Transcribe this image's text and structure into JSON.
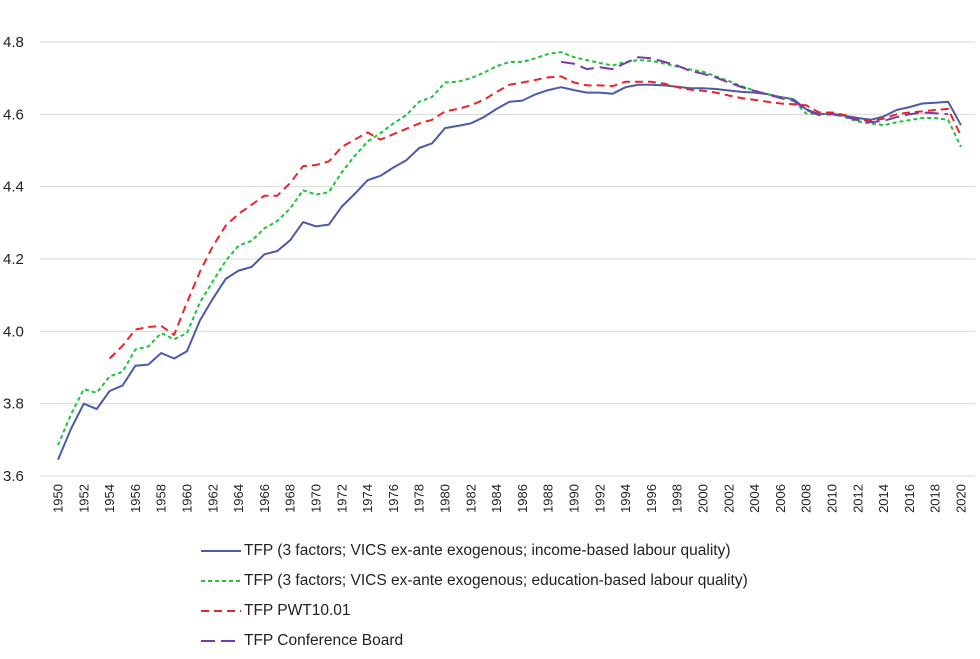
{
  "chart_data": {
    "type": "line",
    "title": "",
    "xlabel": "",
    "ylabel": "",
    "ylim": [
      3.6,
      4.8
    ],
    "yticks": [
      "3.6",
      "3.8",
      "4.0",
      "4.2",
      "4.4",
      "4.6",
      "4.8"
    ],
    "xlim": [
      1950,
      2020
    ],
    "xticks": [
      "1950",
      "1952",
      "1954",
      "1956",
      "1958",
      "1960",
      "1962",
      "1964",
      "1966",
      "1968",
      "1970",
      "1972",
      "1974",
      "1976",
      "1978",
      "1980",
      "1982",
      "1984",
      "1986",
      "1988",
      "1990",
      "1992",
      "1994",
      "1996",
      "1998",
      "2000",
      "2002",
      "2004",
      "2006",
      "2008",
      "2010",
      "2012",
      "2014",
      "2016",
      "2018",
      "2020"
    ],
    "grid": "horizontal",
    "legend_position": "bottom",
    "series": [
      {
        "name": "TFP (3 factors; VICS ex-ante exogenous; income-based labour quality)",
        "color": "#4a5ba8",
        "style": "solid",
        "x": [
          1950,
          1951,
          1952,
          1953,
          1954,
          1955,
          1956,
          1957,
          1958,
          1959,
          1960,
          1961,
          1962,
          1963,
          1964,
          1965,
          1966,
          1967,
          1968,
          1969,
          1970,
          1971,
          1972,
          1973,
          1974,
          1975,
          1976,
          1977,
          1978,
          1979,
          1980,
          1981,
          1982,
          1983,
          1984,
          1985,
          1986,
          1987,
          1988,
          1989,
          1990,
          1991,
          1992,
          1993,
          1994,
          1995,
          1996,
          1997,
          1998,
          1999,
          2000,
          2001,
          2002,
          2003,
          2004,
          2005,
          2006,
          2007,
          2008,
          2009,
          2010,
          2011,
          2012,
          2013,
          2014,
          2015,
          2016,
          2017,
          2018,
          2019,
          2020
        ],
        "values": [
          3.645,
          3.73,
          3.8,
          3.785,
          3.835,
          3.85,
          3.905,
          3.908,
          3.94,
          3.925,
          3.945,
          4.03,
          4.09,
          4.145,
          4.168,
          4.178,
          4.213,
          4.222,
          4.252,
          4.302,
          4.29,
          4.295,
          4.345,
          4.38,
          4.418,
          4.43,
          4.453,
          4.473,
          4.507,
          4.52,
          4.562,
          4.568,
          4.575,
          4.592,
          4.615,
          4.635,
          4.638,
          4.655,
          4.667,
          4.675,
          4.667,
          4.66,
          4.66,
          4.657,
          4.675,
          4.682,
          4.682,
          4.68,
          4.676,
          4.672,
          4.672,
          4.67,
          4.666,
          4.662,
          4.66,
          4.656,
          4.648,
          4.642,
          4.614,
          4.6,
          4.602,
          4.596,
          4.59,
          4.585,
          4.594,
          4.612,
          4.62,
          4.63,
          4.632,
          4.635,
          4.57
        ]
      },
      {
        "name": "TFP (3 factors; VICS ex-ante exogenous; education-based labour quality)",
        "color": "#21c23b",
        "style": "dotted",
        "x": [
          1950,
          1951,
          1952,
          1953,
          1954,
          1955,
          1956,
          1957,
          1958,
          1959,
          1960,
          1961,
          1962,
          1963,
          1964,
          1965,
          1966,
          1967,
          1968,
          1969,
          1970,
          1971,
          1972,
          1973,
          1974,
          1975,
          1976,
          1977,
          1978,
          1979,
          1980,
          1981,
          1982,
          1983,
          1984,
          1985,
          1986,
          1987,
          1988,
          1989,
          1990,
          1991,
          1992,
          1993,
          1994,
          1995,
          1996,
          1997,
          1998,
          1999,
          2000,
          2001,
          2002,
          2003,
          2004,
          2005,
          2006,
          2007,
          2008,
          2009,
          2010,
          2011,
          2012,
          2013,
          2014,
          2015,
          2016,
          2017,
          2018,
          2019,
          2020
        ],
        "values": [
          3.685,
          3.77,
          3.84,
          3.83,
          3.875,
          3.888,
          3.95,
          3.958,
          3.995,
          3.978,
          3.995,
          4.08,
          4.138,
          4.195,
          4.237,
          4.25,
          4.285,
          4.305,
          4.34,
          4.39,
          4.378,
          4.385,
          4.44,
          4.485,
          4.525,
          4.548,
          4.575,
          4.598,
          4.635,
          4.648,
          4.688,
          4.69,
          4.7,
          4.715,
          4.733,
          4.745,
          4.745,
          4.755,
          4.767,
          4.772,
          4.758,
          4.75,
          4.742,
          4.735,
          4.745,
          4.75,
          4.748,
          4.74,
          4.732,
          4.724,
          4.718,
          4.705,
          4.692,
          4.678,
          4.665,
          4.655,
          4.648,
          4.64,
          4.602,
          4.6,
          4.603,
          4.592,
          4.58,
          4.575,
          4.57,
          4.578,
          4.584,
          4.59,
          4.59,
          4.585,
          4.51
        ]
      },
      {
        "name": "TFP PWT10.01",
        "color": "#e8262a",
        "style": "dashed",
        "x": [
          1954,
          1955,
          1956,
          1957,
          1958,
          1959,
          1960,
          1961,
          1962,
          1963,
          1964,
          1965,
          1966,
          1967,
          1968,
          1969,
          1970,
          1971,
          1972,
          1973,
          1974,
          1975,
          1976,
          1977,
          1978,
          1979,
          1980,
          1981,
          1982,
          1983,
          1984,
          1985,
          1986,
          1987,
          1988,
          1989,
          1990,
          1991,
          1992,
          1993,
          1994,
          1995,
          1996,
          1997,
          1998,
          1999,
          2000,
          2001,
          2002,
          2003,
          2004,
          2005,
          2006,
          2007,
          2008,
          2009,
          2010,
          2011,
          2012,
          2013,
          2014,
          2015,
          2016,
          2017,
          2018,
          2019,
          2020
        ],
        "values": [
          3.925,
          3.96,
          4.005,
          4.012,
          4.015,
          3.99,
          4.08,
          4.165,
          4.235,
          4.292,
          4.325,
          4.35,
          4.375,
          4.375,
          4.41,
          4.457,
          4.46,
          4.47,
          4.51,
          4.53,
          4.55,
          4.53,
          4.545,
          4.56,
          4.575,
          4.585,
          4.608,
          4.615,
          4.625,
          4.64,
          4.662,
          4.682,
          4.688,
          4.695,
          4.702,
          4.705,
          4.688,
          4.68,
          4.68,
          4.678,
          4.69,
          4.69,
          4.69,
          4.685,
          4.675,
          4.668,
          4.665,
          4.66,
          4.652,
          4.645,
          4.64,
          4.635,
          4.63,
          4.628,
          4.625,
          4.605,
          4.605,
          4.598,
          4.585,
          4.582,
          4.588,
          4.6,
          4.605,
          4.608,
          4.612,
          4.615,
          4.54
        ]
      },
      {
        "name": "TFP Conference Board",
        "color": "#7b3aa6",
        "style": "longdash",
        "x": [
          1989,
          1990,
          1991,
          1992,
          1993,
          1994,
          1995,
          1996,
          1997,
          1998,
          1999,
          2000,
          2001,
          2002,
          2003,
          2004,
          2005,
          2006,
          2007,
          2008,
          2009,
          2010,
          2011,
          2012,
          2013,
          2014,
          2015,
          2016,
          2017,
          2018,
          2019
        ],
        "values": [
          4.745,
          4.74,
          4.725,
          4.73,
          4.725,
          4.742,
          4.758,
          4.755,
          4.745,
          4.735,
          4.72,
          4.712,
          4.702,
          4.688,
          4.675,
          4.665,
          4.655,
          4.645,
          4.638,
          4.612,
          4.598,
          4.6,
          4.594,
          4.584,
          4.578,
          4.582,
          4.592,
          4.6,
          4.605,
          4.603,
          4.6
        ]
      }
    ]
  }
}
